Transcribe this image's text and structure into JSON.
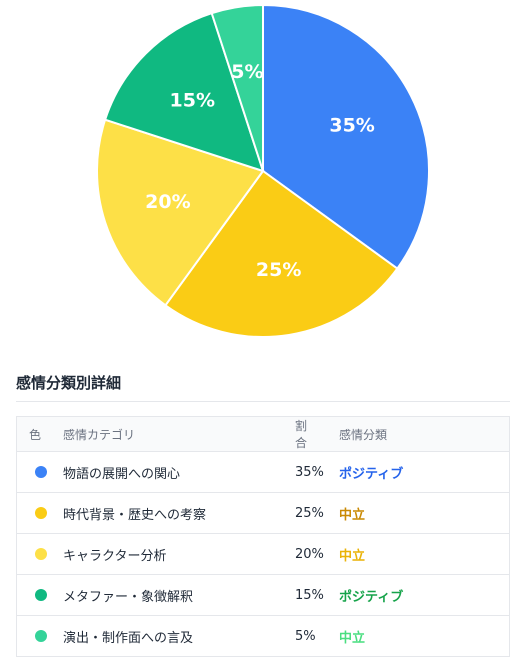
{
  "chart_data": {
    "type": "pie",
    "slices": [
      {
        "label": "物語の展開への関心",
        "value": 35,
        "display": "35%",
        "color": "#3b82f6"
      },
      {
        "label": "時代背景・歴史への考察",
        "value": 25,
        "display": "25%",
        "color": "#facc15"
      },
      {
        "label": "キャラクター分析",
        "value": 20,
        "display": "20%",
        "color": "#fde047"
      },
      {
        "label": "メタファー・象徴解釈",
        "value": 15,
        "display": "15%",
        "color": "#10b981"
      },
      {
        "label": "演出・制作面への言及",
        "value": 5,
        "display": "5%",
        "color": "#34d399"
      }
    ]
  },
  "details": {
    "title": "感情分類別詳細",
    "headers": {
      "color": "色",
      "category": "感情カテゴリ",
      "ratio": "割合",
      "sentiment": "感情分類"
    },
    "rows": [
      {
        "color": "#3b82f6",
        "category": "物語の展開への関心",
        "ratio": "35%",
        "sentiment": "ポジティブ",
        "sentiment_color": "#2563eb"
      },
      {
        "color": "#facc15",
        "category": "時代背景・歴史への考察",
        "ratio": "25%",
        "sentiment": "中立",
        "sentiment_color": "#ca8a04"
      },
      {
        "color": "#fde047",
        "category": "キャラクター分析",
        "ratio": "20%",
        "sentiment": "中立",
        "sentiment_color": "#eab308"
      },
      {
        "color": "#10b981",
        "category": "メタファー・象徴解釈",
        "ratio": "15%",
        "sentiment": "ポジティブ",
        "sentiment_color": "#16a34a"
      },
      {
        "color": "#34d399",
        "category": "演出・制作面への言及",
        "ratio": "5%",
        "sentiment": "中立",
        "sentiment_color": "#4ade80"
      }
    ]
  }
}
